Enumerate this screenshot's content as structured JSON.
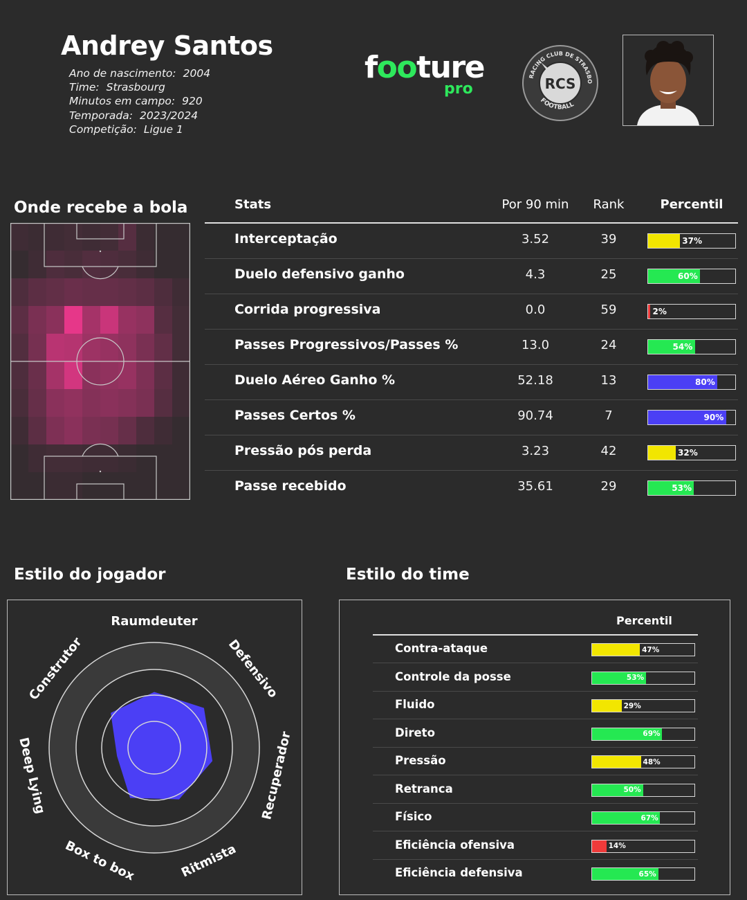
{
  "player": {
    "name": "Andrey Santos",
    "info": [
      {
        "label": "Ano de nascimento:",
        "value": "2004"
      },
      {
        "label": "Time:",
        "value": "Strasbourg"
      },
      {
        "label": "Minutos em campo:",
        "value": "920"
      },
      {
        "label": "Temporada:",
        "value": "2023/2024"
      },
      {
        "label": "Competição:",
        "value": "Ligue 1"
      }
    ]
  },
  "brand": {
    "logo_a": "f",
    "logo_oo": "oo",
    "logo_b": "ture",
    "logo_pro": "pro"
  },
  "club_badge": {
    "top_text": "RACING CLUB DE STRASBOURG",
    "bottom_text": "FOOTBALL",
    "monogram": "RCS"
  },
  "sections": {
    "heatmap_title": "Onde recebe a bola",
    "player_style_title": "Estilo do jogador",
    "team_style_title": "Estilo do time"
  },
  "colors": {
    "background": "#2b2b2b",
    "accent_green": "#2ee85c",
    "bar_green": "#25e852",
    "bar_yellow": "#f2e600",
    "bar_red": "#ef3a3a",
    "bar_blue": "#4b3ff5",
    "radar_fill": "#4b3ff5",
    "heat_high": "#f0388e"
  },
  "chart_data": [
    {
      "type": "heatmap",
      "title": "Onde recebe a bola",
      "grid": [
        [
          0.1,
          0.08,
          0.1,
          0.12,
          0.1,
          0.12,
          0.22,
          0.08,
          0.05,
          0.05
        ],
        [
          0.05,
          0.1,
          0.18,
          0.15,
          0.2,
          0.18,
          0.15,
          0.1,
          0.05,
          0.05
        ],
        [
          0.18,
          0.25,
          0.28,
          0.32,
          0.3,
          0.3,
          0.28,
          0.25,
          0.18,
          0.1
        ],
        [
          0.25,
          0.4,
          0.48,
          0.95,
          0.62,
          0.8,
          0.55,
          0.5,
          0.22,
          0.12
        ],
        [
          0.2,
          0.38,
          0.72,
          0.7,
          0.58,
          0.55,
          0.5,
          0.4,
          0.28,
          0.12
        ],
        [
          0.18,
          0.32,
          0.62,
          0.85,
          0.48,
          0.52,
          0.55,
          0.42,
          0.25,
          0.1
        ],
        [
          0.15,
          0.3,
          0.48,
          0.52,
          0.45,
          0.48,
          0.45,
          0.4,
          0.22,
          0.1
        ],
        [
          0.1,
          0.25,
          0.42,
          0.48,
          0.4,
          0.38,
          0.3,
          0.18,
          0.1,
          0.05
        ],
        [
          0.05,
          0.1,
          0.12,
          0.12,
          0.1,
          0.1,
          0.08,
          0.05,
          0.05,
          0.05
        ],
        [
          0.05,
          0.05,
          0.08,
          0.08,
          0.05,
          0.05,
          0.05,
          0.05,
          0.05,
          0.05
        ]
      ]
    },
    {
      "type": "table",
      "columns": [
        "Stats",
        "Por 90 min",
        "Rank",
        "Percentil"
      ],
      "rows": [
        {
          "stat": "Interceptação",
          "per90": "3.52",
          "rank": "39",
          "percentile": 37,
          "pct_label": "37%",
          "color": "#f2e600"
        },
        {
          "stat": "Duelo defensivo ganho",
          "per90": "4.3",
          "rank": "25",
          "percentile": 60,
          "pct_label": "60%",
          "color": "#25e852"
        },
        {
          "stat": "Corrida progressiva",
          "per90": "0.0",
          "rank": "59",
          "percentile": 2,
          "pct_label": "2%",
          "color": "#ef3a3a"
        },
        {
          "stat": "Passes Progressivos/Passes %",
          "per90": "13.0",
          "rank": "24",
          "percentile": 54,
          "pct_label": "54%",
          "color": "#25e852"
        },
        {
          "stat": "Duelo Aéreo Ganho %",
          "per90": "52.18",
          "rank": "13",
          "percentile": 80,
          "pct_label": "80%",
          "color": "#4b3ff5"
        },
        {
          "stat": "Passes Certos %",
          "per90": "90.74",
          "rank": "7",
          "percentile": 90,
          "pct_label": "90%",
          "color": "#4b3ff5"
        },
        {
          "stat": "Pressão pós perda",
          "per90": "3.23",
          "rank": "42",
          "percentile": 32,
          "pct_label": "32%",
          "color": "#f2e600"
        },
        {
          "stat": "Passe recebido",
          "per90": "35.61",
          "rank": "29",
          "percentile": 53,
          "pct_label": "53%",
          "color": "#25e852"
        }
      ]
    },
    {
      "type": "radar",
      "title": "Estilo do jogador",
      "axes": [
        "Raumdeuter",
        "Defensivo",
        "Recuperador",
        "Ritmista",
        "Box to box",
        "Deep Lying",
        "Construtor"
      ],
      "values": [
        0.7,
        0.8,
        0.75,
        0.72,
        0.7,
        0.48,
        0.7
      ],
      "range": [
        0,
        1
      ]
    },
    {
      "type": "table",
      "title": "Estilo do time",
      "columns": [
        "",
        "Percentil"
      ],
      "rows": [
        {
          "label": "Contra-ataque",
          "percentile": 47,
          "pct_label": "47%",
          "color": "#f2e600"
        },
        {
          "label": "Controle da posse",
          "percentile": 53,
          "pct_label": "53%",
          "color": "#25e852"
        },
        {
          "label": "Fluido",
          "percentile": 29,
          "pct_label": "29%",
          "color": "#f2e600"
        },
        {
          "label": "Direto",
          "percentile": 69,
          "pct_label": "69%",
          "color": "#25e852"
        },
        {
          "label": "Pressão",
          "percentile": 48,
          "pct_label": "48%",
          "color": "#f2e600"
        },
        {
          "label": "Retranca",
          "percentile": 50,
          "pct_label": "50%",
          "color": "#25e852"
        },
        {
          "label": "Físico",
          "percentile": 67,
          "pct_label": "67%",
          "color": "#25e852"
        },
        {
          "label": "Eficiência ofensiva",
          "percentile": 14,
          "pct_label": "14%",
          "color": "#ef3a3a"
        },
        {
          "label": "Eficiência defensiva",
          "percentile": 65,
          "pct_label": "65%",
          "color": "#25e852"
        }
      ]
    }
  ]
}
